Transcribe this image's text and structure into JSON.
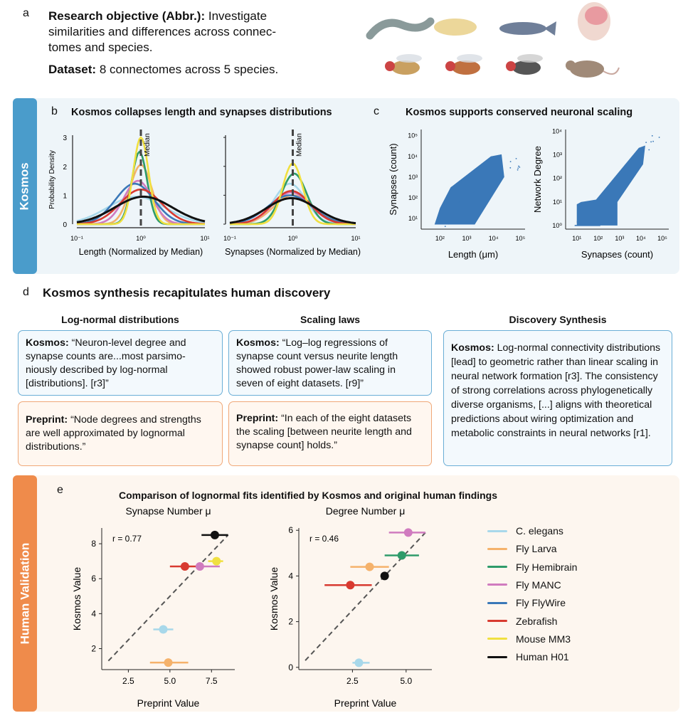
{
  "panel_a": {
    "letter": "a",
    "objective_label": "Research objective (Abbr.):",
    "objective_text": " Investigate similarities and differences across connec-tomes and species.",
    "dataset_label": "Dataset:",
    "dataset_text": " 8 connectomes across 5 species."
  },
  "kosmos_tab": "Kosmos",
  "human_tab": "Human Validation",
  "panel_b": {
    "letter": "b",
    "title": "Kosmos collapses length and synapses distributions"
  },
  "panel_c": {
    "letter": "c",
    "title": "Kosmos supports conserved neuronal scaling"
  },
  "panel_d": {
    "letter": "d",
    "title": "Kosmos synthesis recapitulates human discovery",
    "columns": [
      {
        "header": "Log-normal distributions",
        "kosmos_label": "Kosmos:",
        "kosmos_text": " “Neuron-level degree and synapse counts are...most parsimo-niously described by log-normal [distributions]. [r3]”",
        "preprint_label": "Preprint:",
        "preprint_text": " “Node degrees and strengths are well approximated by lognormal distributions.”"
      },
      {
        "header": "Scaling laws",
        "kosmos_label": "Kosmos:",
        "kosmos_text": " “Log–log regressions of synapse count versus neurite length showed robust power-law scaling in seven of eight datasets. [r9]”",
        "preprint_label": "Preprint:",
        "preprint_text": " “In each of the eight datasets the scaling [between neurite length and synapse count] holds.”"
      },
      {
        "header": "Discovery Synthesis",
        "kosmos_label": "Kosmos:",
        "kosmos_text": " Log-normal connectivity distributions [lead] to geometric rather than linear scaling in neural network formation [r3]. The consistency of strong correlations across phylogenetically diverse organisms, [...] aligns with theoretical predictions about wiring optimization and metabolic constraints in neural networks [r1]."
      }
    ]
  },
  "panel_e": {
    "letter": "e",
    "title": "Comparison of lognormal fits identified by Kosmos and original human findings"
  },
  "legend": [
    {
      "name": "C. elegans",
      "color": "#a8d8ea"
    },
    {
      "name": "Fly Larva",
      "color": "#f5b26b"
    },
    {
      "name": "Fly Hemibrain",
      "color": "#2e9b6a"
    },
    {
      "name": "Fly MANC",
      "color": "#d07bbf"
    },
    {
      "name": "Fly FlyWire",
      "color": "#3a78b8"
    },
    {
      "name": "Zebrafish",
      "color": "#d83a30"
    },
    {
      "name": "Mouse MM3",
      "color": "#f0e040"
    },
    {
      "name": "Human H01",
      "color": "#111111"
    }
  ],
  "colors": {
    "kosmos": "#4a9ccb",
    "kosmos_bg": "#eef5f9",
    "human": "#ef8b4b",
    "human_bg": "#fdf6ef",
    "scatter": "#3a78b8"
  },
  "chart_data": [
    {
      "id": "b-length",
      "type": "line",
      "xlabel": "Length (Normalized by Median)",
      "ylabel": "Probability Density",
      "xscale": "log",
      "xlim": [
        0.1,
        10
      ],
      "ylim": [
        0,
        3.2
      ],
      "xticks": [
        "10⁻¹",
        "10⁰",
        "10¹"
      ],
      "yticks": [
        "0",
        "1",
        "2",
        "3"
      ],
      "annotation": "Median",
      "series": [
        {
          "name": "C. elegans",
          "peak": 0.95,
          "sigma_log10": 0.45,
          "mode": 0.85
        },
        {
          "name": "Fly Larva",
          "peak": 2.05,
          "sigma_log10": 0.17,
          "mode": 1.0
        },
        {
          "name": "Fly Hemibrain",
          "peak": 2.5,
          "sigma_log10": 0.12,
          "mode": 0.95
        },
        {
          "name": "Fly MANC",
          "peak": 1.5,
          "sigma_log10": 0.22,
          "mode": 0.9
        },
        {
          "name": "Fly FlyWire",
          "peak": 1.4,
          "sigma_log10": 0.3,
          "mode": 0.8
        },
        {
          "name": "Zebrafish",
          "peak": 1.2,
          "sigma_log10": 0.32,
          "mode": 1.0
        },
        {
          "name": "Mouse MM3",
          "peak": 3.0,
          "sigma_log10": 0.12,
          "mode": 1.0
        },
        {
          "name": "Human H01",
          "peak": 0.95,
          "sigma_log10": 0.45,
          "mode": 1.1
        }
      ]
    },
    {
      "id": "b-synapses",
      "type": "line",
      "xlabel": "Synapses (Normalized by Median)",
      "ylabel": "",
      "xscale": "log",
      "xlim": [
        0.1,
        10
      ],
      "ylim": [
        0,
        3.2
      ],
      "xticks": [
        "10⁻¹",
        "10⁰",
        "10¹"
      ],
      "annotation": "Median",
      "series": [
        {
          "name": "C. elegans",
          "peak": 1.4,
          "sigma_log10": 0.25,
          "mode": 0.9
        },
        {
          "name": "Fly Larva",
          "peak": 1.0,
          "sigma_log10": 0.3,
          "mode": 1.0
        },
        {
          "name": "Fly Hemibrain",
          "peak": 1.75,
          "sigma_log10": 0.2,
          "mode": 1.05
        },
        {
          "name": "Fly MANC",
          "peak": 1.1,
          "sigma_log10": 0.3,
          "mode": 0.95
        },
        {
          "name": "Fly FlyWire",
          "peak": 1.0,
          "sigma_log10": 0.35,
          "mode": 0.9
        },
        {
          "name": "Zebrafish",
          "peak": 1.15,
          "sigma_log10": 0.3,
          "mode": 0.95
        },
        {
          "name": "Mouse MM3",
          "peak": 2.1,
          "sigma_log10": 0.16,
          "mode": 1.0
        },
        {
          "name": "Human H01",
          "peak": 0.9,
          "sigma_log10": 0.4,
          "mode": 0.95
        }
      ]
    },
    {
      "id": "c-length-synapses",
      "type": "scatter",
      "xlabel": "Length (μm)",
      "ylabel": "Synapses (count)",
      "xscale": "log",
      "yscale": "log",
      "xlim": [
        20,
        150000
      ],
      "ylim": [
        3,
        200000
      ],
      "xticks": [
        "10²",
        "10³",
        "10⁴",
        "10⁵"
      ],
      "yticks": [
        "10¹",
        "10²",
        "10³",
        "10⁴",
        "10⁵"
      ]
    },
    {
      "id": "c-synapses-degree",
      "type": "scatter",
      "xlabel": "Synapses (count)",
      "ylabel": "Network Degree",
      "xscale": "log",
      "yscale": "log",
      "xlim": [
        3,
        200000
      ],
      "ylim": [
        0.7,
        12000
      ],
      "xticks": [
        "10¹",
        "10²",
        "10³",
        "10⁴",
        "10⁵"
      ],
      "yticks": [
        "10⁰",
        "10¹",
        "10²",
        "10³",
        "10⁴"
      ]
    },
    {
      "id": "e-synapse",
      "type": "scatter",
      "title": "Synapse Number μ",
      "xlabel": "Preprint Value",
      "ylabel": "Kosmos Value",
      "xlim": [
        0.9,
        8.9
      ],
      "ylim": [
        0.8,
        8.9
      ],
      "xticks": [
        "2.5",
        "5.0",
        "7.5"
      ],
      "yticks": [
        "2",
        "4",
        "6",
        "8"
      ],
      "annotation": "r = 0.77",
      "identity_line": [
        1.3,
        8.5
      ],
      "points": [
        {
          "name": "Human H01",
          "x": 7.7,
          "y": 8.5,
          "xerr": [
            6.9,
            8.5
          ]
        },
        {
          "name": "Zebrafish",
          "x": 5.9,
          "y": 6.7,
          "xerr": [
            5.0,
            7.0
          ]
        },
        {
          "name": "Fly MANC",
          "x": 6.8,
          "y": 6.7,
          "xerr": [
            6.6,
            8.0
          ]
        },
        {
          "name": "Mouse MM3",
          "x": 7.8,
          "y": 7.0,
          "xerr": [
            7.3,
            8.2
          ]
        },
        {
          "name": "C. elegans",
          "x": 4.6,
          "y": 3.1,
          "xerr": [
            4.0,
            5.2
          ]
        },
        {
          "name": "Fly Larva",
          "x": 4.9,
          "y": 1.2,
          "xerr": [
            3.8,
            6.1
          ]
        }
      ]
    },
    {
      "id": "e-degree",
      "type": "scatter",
      "title": "Degree Number μ",
      "xlabel": "Preprint Value",
      "ylabel": "Kosmos Value",
      "xlim": [
        0,
        6.2
      ],
      "ylim": [
        -0.1,
        6.1
      ],
      "xticks": [
        "2.5",
        "5.0"
      ],
      "yticks": [
        "0",
        "2",
        "4",
        "6"
      ],
      "annotation": "r = 0.46",
      "identity_line": [
        0.3,
        5.9
      ],
      "points": [
        {
          "name": "Fly MANC",
          "x": 5.1,
          "y": 5.9,
          "xerr": [
            4.2,
            5.9
          ]
        },
        {
          "name": "Fly Hemibrain",
          "x": 4.8,
          "y": 4.9,
          "xerr": [
            4.0,
            5.6
          ]
        },
        {
          "name": "Fly Larva",
          "x": 3.3,
          "y": 4.4,
          "xerr": [
            2.4,
            4.2
          ]
        },
        {
          "name": "Human H01",
          "x": 4.0,
          "y": 4.0,
          "xerr": [
            4.0,
            4.0
          ]
        },
        {
          "name": "Zebrafish",
          "x": 2.4,
          "y": 3.6,
          "xerr": [
            1.2,
            3.4
          ]
        },
        {
          "name": "C. elegans",
          "x": 2.8,
          "y": 0.2,
          "xerr": [
            2.5,
            3.3
          ]
        }
      ]
    }
  ]
}
